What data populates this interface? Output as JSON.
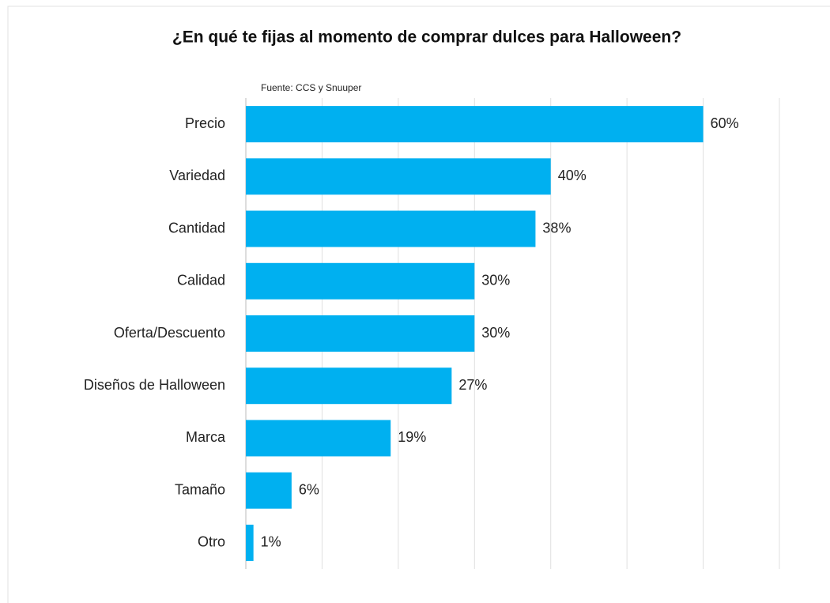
{
  "chart_data": {
    "type": "barh",
    "title": "¿En qué te fijas al momento de comprar dulces para Halloween?",
    "subtitle": "Fuente: CCS y Snuuper",
    "categories": [
      "Precio",
      "Variedad",
      "Cantidad",
      "Calidad",
      "Oferta/Descuento",
      "Diseños de Halloween",
      "Marca",
      "Tamaño",
      "Otro"
    ],
    "values": [
      60,
      40,
      38,
      30,
      30,
      27,
      19,
      6,
      1
    ],
    "value_labels": [
      "60%",
      "40%",
      "38%",
      "30%",
      "30%",
      "27%",
      "19%",
      "6%",
      "1%"
    ],
    "color": "#00b0f0",
    "xlim": [
      0,
      70
    ],
    "xticks": [
      0,
      10,
      20,
      30,
      40,
      50,
      60,
      70
    ],
    "grid": true
  }
}
